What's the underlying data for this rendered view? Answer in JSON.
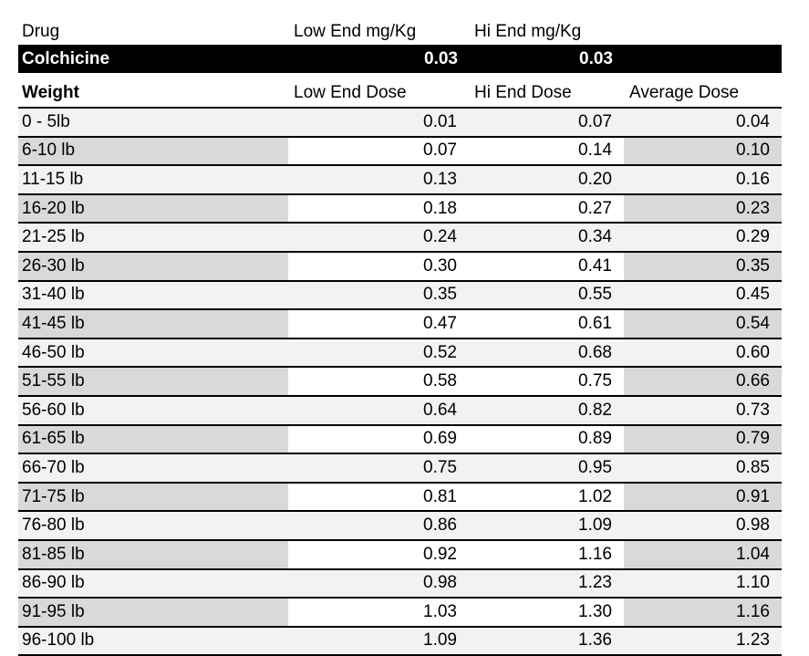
{
  "table": {
    "drug_header": {
      "drug": "Drug",
      "low_end_mg_kg": "Low End mg/Kg",
      "hi_end_mg_kg": "Hi End mg/Kg"
    },
    "drug_row": {
      "name": "Colchicine",
      "low_end_mg_kg": "0.03",
      "hi_end_mg_kg": "0.03"
    },
    "dose_header": {
      "weight": "Weight",
      "low_end_dose": "Low End Dose",
      "hi_end_dose": "Hi End Dose",
      "average_dose": "Average Dose"
    },
    "rows": [
      {
        "weight": "0 - 5lb",
        "low": "0.01",
        "hi": "0.07",
        "avg": "0.04",
        "shade": "light"
      },
      {
        "weight": "6-10 lb",
        "low": "0.07",
        "hi": "0.14",
        "avg": "0.10",
        "shade": "dark"
      },
      {
        "weight": "11-15 lb",
        "low": "0.13",
        "hi": "0.20",
        "avg": "0.16",
        "shade": "light"
      },
      {
        "weight": "16-20 lb",
        "low": "0.18",
        "hi": "0.27",
        "avg": "0.23",
        "shade": "dark"
      },
      {
        "weight": "21-25 lb",
        "low": "0.24",
        "hi": "0.34",
        "avg": "0.29",
        "shade": "light"
      },
      {
        "weight": "26-30 lb",
        "low": "0.30",
        "hi": "0.41",
        "avg": "0.35",
        "shade": "dark"
      },
      {
        "weight": "31-40 lb",
        "low": "0.35",
        "hi": "0.55",
        "avg": "0.45",
        "shade": "light"
      },
      {
        "weight": "41-45 lb",
        "low": "0.47",
        "hi": "0.61",
        "avg": "0.54",
        "shade": "dark"
      },
      {
        "weight": "46-50 lb",
        "low": "0.52",
        "hi": "0.68",
        "avg": "0.60",
        "shade": "light"
      },
      {
        "weight": "51-55 lb",
        "low": "0.58",
        "hi": "0.75",
        "avg": "0.66",
        "shade": "dark"
      },
      {
        "weight": "56-60 lb",
        "low": "0.64",
        "hi": "0.82",
        "avg": "0.73",
        "shade": "light"
      },
      {
        "weight": "61-65 lb",
        "low": "0.69",
        "hi": "0.89",
        "avg": "0.79",
        "shade": "dark"
      },
      {
        "weight": "66-70 lb",
        "low": "0.75",
        "hi": "0.95",
        "avg": "0.85",
        "shade": "light"
      },
      {
        "weight": "71-75 lb",
        "low": "0.81",
        "hi": "1.02",
        "avg": "0.91",
        "shade": "dark"
      },
      {
        "weight": "76-80 lb",
        "low": "0.86",
        "hi": "1.09",
        "avg": "0.98",
        "shade": "light"
      },
      {
        "weight": "81-85 lb",
        "low": "0.92",
        "hi": "1.16",
        "avg": "1.04",
        "shade": "dark"
      },
      {
        "weight": "86-90 lb",
        "low": "0.98",
        "hi": "1.23",
        "avg": "1.10",
        "shade": "light"
      },
      {
        "weight": "91-95 lb",
        "low": "1.03",
        "hi": "1.30",
        "avg": "1.16",
        "shade": "dark"
      },
      {
        "weight": "96-100 lb",
        "low": "1.09",
        "hi": "1.36",
        "avg": "1.23",
        "shade": "light"
      }
    ]
  },
  "colors": {
    "banner_background": "#000000",
    "banner_text": "#ffffff",
    "row_light": "#f2f2f2",
    "row_dark": "#d9d9d9",
    "row_white": "#ffffff",
    "border": "#000000"
  }
}
